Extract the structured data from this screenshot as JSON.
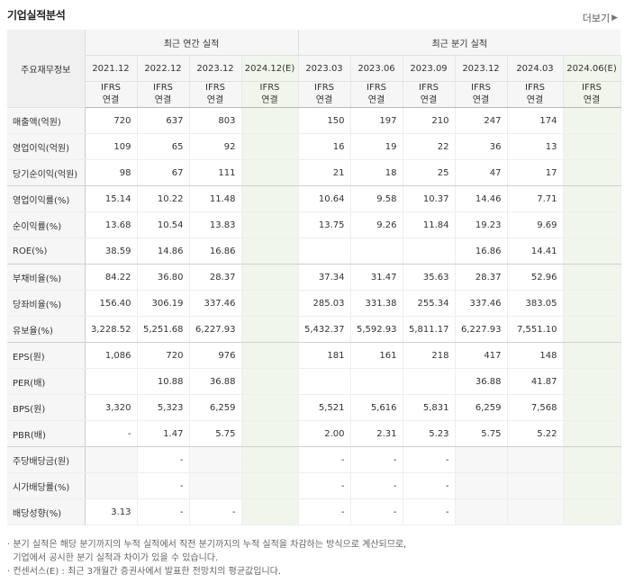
{
  "title": "기업실적분석",
  "more_label": "더보기",
  "more_icon": "chevron-right-icon",
  "header": {
    "row_label": "주요재무정보",
    "annual_group": "최근 연간 실적",
    "quarter_group": "최근 분기 실적",
    "annual_periods": [
      "2021.12",
      "2022.12",
      "2023.12",
      "2024.12(E)"
    ],
    "quarter_periods": [
      "2023.03",
      "2023.06",
      "2023.09",
      "2023.12",
      "2024.03",
      "2024.06(E)"
    ],
    "ifrs_top": "IFRS",
    "ifrs_bottom": "연결"
  },
  "rows": [
    {
      "label": "매출액(억원)",
      "annual": [
        "720",
        "637",
        "803",
        ""
      ],
      "quarter": [
        "150",
        "197",
        "210",
        "247",
        "174",
        ""
      ]
    },
    {
      "label": "영업이익(억원)",
      "annual": [
        "109",
        "65",
        "92",
        ""
      ],
      "quarter": [
        "16",
        "19",
        "22",
        "36",
        "13",
        ""
      ]
    },
    {
      "label": "당기순이익(억원)",
      "annual": [
        "98",
        "67",
        "111",
        ""
      ],
      "quarter": [
        "21",
        "18",
        "25",
        "47",
        "17",
        ""
      ]
    },
    {
      "label": "영업이익률(%)",
      "annual": [
        "15.14",
        "10.22",
        "11.48",
        ""
      ],
      "quarter": [
        "10.64",
        "9.58",
        "10.37",
        "14.46",
        "7.71",
        ""
      ]
    },
    {
      "label": "순이익률(%)",
      "annual": [
        "13.68",
        "10.54",
        "13.83",
        ""
      ],
      "quarter": [
        "13.75",
        "9.26",
        "11.84",
        "19.23",
        "9.69",
        ""
      ]
    },
    {
      "label": "ROE(%)",
      "annual": [
        "38.59",
        "14.86",
        "16.86",
        ""
      ],
      "quarter": [
        "",
        "",
        "",
        "16.86",
        "14.41",
        ""
      ]
    },
    {
      "label": "부채비율(%)",
      "annual": [
        "84.22",
        "36.80",
        "28.37",
        ""
      ],
      "quarter": [
        "37.34",
        "31.47",
        "35.63",
        "28.37",
        "52.96",
        ""
      ]
    },
    {
      "label": "당좌비율(%)",
      "annual": [
        "156.40",
        "306.19",
        "337.46",
        ""
      ],
      "quarter": [
        "285.03",
        "331.38",
        "255.34",
        "337.46",
        "383.05",
        ""
      ]
    },
    {
      "label": "유보율(%)",
      "annual": [
        "3,228.52",
        "5,251.68",
        "6,227.93",
        ""
      ],
      "quarter": [
        "5,432.37",
        "5,592.93",
        "5,811.17",
        "6,227.93",
        "7,551.10",
        ""
      ]
    },
    {
      "label": "EPS(원)",
      "annual": [
        "1,086",
        "720",
        "976",
        ""
      ],
      "quarter": [
        "181",
        "161",
        "218",
        "417",
        "148",
        ""
      ]
    },
    {
      "label": "PER(배)",
      "annual": [
        "",
        "10.88",
        "36.88",
        ""
      ],
      "quarter": [
        "",
        "",
        "",
        "36.88",
        "41.87",
        ""
      ]
    },
    {
      "label": "BPS(원)",
      "annual": [
        "3,320",
        "5,323",
        "6,259",
        ""
      ],
      "quarter": [
        "5,521",
        "5,616",
        "5,831",
        "6,259",
        "7,568",
        ""
      ]
    },
    {
      "label": "PBR(배)",
      "annual": [
        "-",
        "1.47",
        "5.75",
        ""
      ],
      "quarter": [
        "2.00",
        "2.31",
        "5.23",
        "5.75",
        "5.22",
        ""
      ]
    },
    {
      "label": "주당배당금(원)",
      "annual": [
        "",
        "-",
        "",
        ""
      ],
      "quarter": [
        "-",
        "-",
        "-",
        "",
        "",
        ""
      ]
    },
    {
      "label": "시가배당률(%)",
      "annual": [
        "",
        "-",
        "",
        ""
      ],
      "quarter": [
        "-",
        "-",
        "-",
        "",
        "",
        ""
      ]
    },
    {
      "label": "배당성향(%)",
      "annual": [
        "3.13",
        "-",
        "-",
        ""
      ],
      "quarter": [
        "-",
        "-",
        "-",
        "",
        "",
        ""
      ]
    }
  ],
  "notes": [
    "· 분기 실적은 해당 분기까지의 누적 실적에서 직전 분기까지의 누적 실적을 차감하는 방식으로 계산되므로,",
    "  기업에서 공시한 분기 실적과 차이가 있을 수 있습니다.",
    "· 컨센서스(E) : 최근 3개월간 증권사에서 발표한 전망치의 평균값입니다."
  ],
  "colors": {
    "ifrs_orange": "#e8601a",
    "estimate_bg": "#f0f6ec",
    "header_bg": "#f6f6f6"
  }
}
